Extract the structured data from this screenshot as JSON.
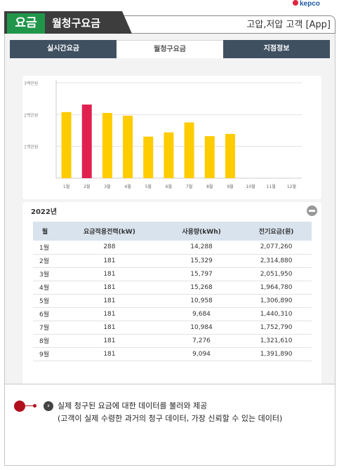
{
  "brand": {
    "logo_text": "kepco"
  },
  "header": {
    "badge": "요금",
    "title": "월청구요금",
    "right_text": "고압,저압 고객 [App]"
  },
  "tabs": [
    {
      "label": "실시간요금",
      "active": false
    },
    {
      "label": "월청구요금",
      "active": true
    },
    {
      "label": "지점정보",
      "active": false
    }
  ],
  "colors": {
    "bar_default": "#ffcc00",
    "bar_highlight": "#e0204f",
    "header_green": "#21964a",
    "tab_dark": "#3f5061"
  },
  "chart_data": {
    "type": "bar",
    "y_ticks": [
      "1백만원",
      "2백만원",
      "3백만원"
    ],
    "y_tick_values": [
      1000000,
      2000000,
      3000000
    ],
    "ylim": [
      0,
      3000000
    ],
    "categories": [
      "1월",
      "2월",
      "3월",
      "4월",
      "5월",
      "6월",
      "7월",
      "8월",
      "9월",
      "10월",
      "11월",
      "12월"
    ],
    "values": [
      2077260,
      2314880,
      2051950,
      1964780,
      1306890,
      1440310,
      1752790,
      1321610,
      1391890,
      null,
      null,
      null
    ],
    "highlight_index": 1
  },
  "table": {
    "year": "2022년",
    "headers": [
      "월",
      "요금적용전력(kW)",
      "사용량(kWh)",
      "전기요금(원)"
    ],
    "rows": [
      [
        "1월",
        "288",
        "14,288",
        "2,077,260"
      ],
      [
        "2월",
        "181",
        "15,329",
        "2,314,880"
      ],
      [
        "3월",
        "181",
        "15,797",
        "2,051,950"
      ],
      [
        "4월",
        "181",
        "15,268",
        "1,964,780"
      ],
      [
        "5월",
        "181",
        "10,958",
        "1,306,890"
      ],
      [
        "6월",
        "181",
        "9,684",
        "1,440,310"
      ],
      [
        "7월",
        "181",
        "10,984",
        "1,752,790"
      ],
      [
        "8월",
        "181",
        "7,276",
        "1,321,610"
      ],
      [
        "9월",
        "181",
        "9,094",
        "1,391,890"
      ]
    ]
  },
  "note": {
    "line1": "실제 청구된 요금에 대한 데이터를 불러와 제공",
    "line2": "(고객이 실제 수령한 과거의 청구 데이터, 가장 신뢰할 수 있는 데이터)"
  }
}
